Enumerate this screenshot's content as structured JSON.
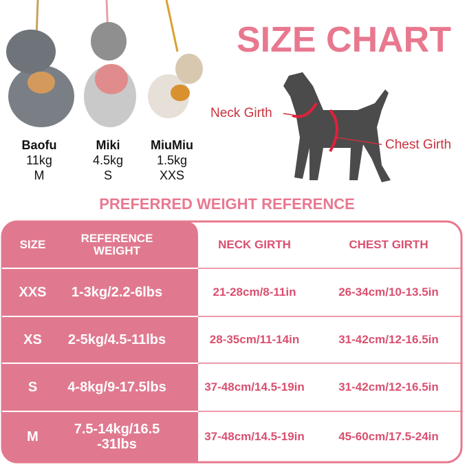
{
  "dogs": [
    {
      "name": "Baofu",
      "weight": "11kg",
      "size": "M"
    },
    {
      "name": "Miki",
      "weight": "4.5kg",
      "size": "S"
    },
    {
      "name": "MiuMiu",
      "weight": "1.5kg",
      "size": "XXS"
    }
  ],
  "title": "SIZE CHART",
  "diagram": {
    "neck_label": "Neck Girth",
    "chest_label": "Chest Girth"
  },
  "subtitle": "PREFERRED WEIGHT REFERENCE",
  "table": {
    "header": [
      "SIZE",
      "REFERENCE WEIGHT",
      "NECK GIRTH",
      "CHEST GIRTH"
    ],
    "rows": [
      [
        "XXS",
        "1-3kg/2.2-6lbs",
        "21-28cm/8-11in",
        "26-34cm/10-13.5in"
      ],
      [
        "XS",
        "2-5kg/4.5-11lbs",
        "28-35cm/11-14in",
        "31-42cm/12-16.5in"
      ],
      [
        "S",
        "4-8kg/9-17.5lbs",
        "37-48cm/14.5-19in",
        "31-42cm/12-16.5in"
      ],
      [
        "M",
        [
          "7.5-14kg/16.5",
          "-31lbs"
        ],
        "37-48cm/14.5-19in",
        "45-60cm/17.5-24in"
      ]
    ]
  }
}
